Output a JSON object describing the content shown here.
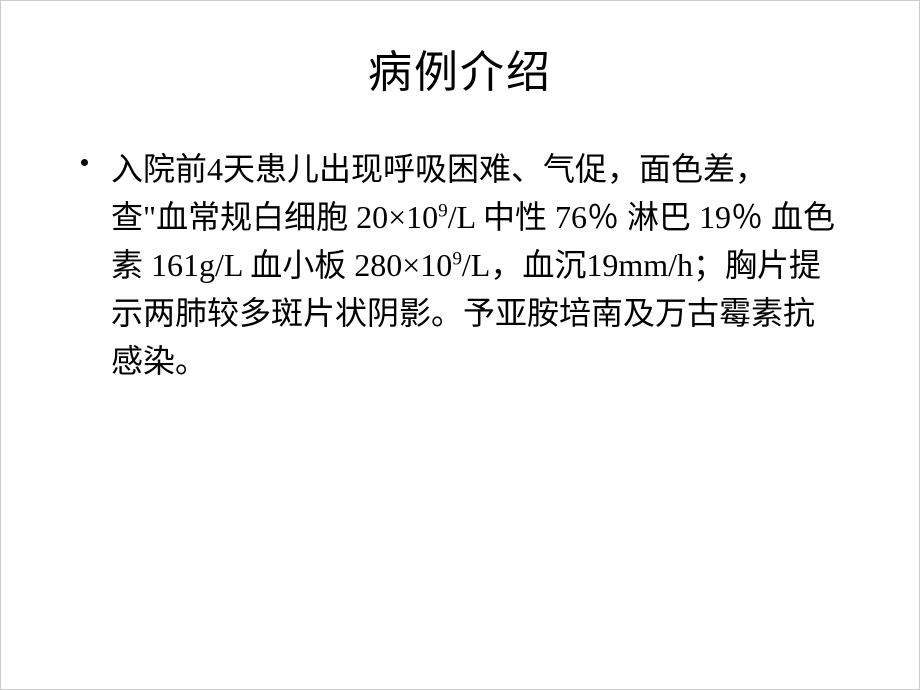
{
  "slide": {
    "title": "病例介绍",
    "bullet": {
      "seg1": "入院前4天患儿出现呼吸困难、气促，面色差，查\"血常规白细胞 20×10",
      "sup1": "9",
      "seg2": "/L 中性 76％ 淋巴 19％ 血色素 161g/L 血小板 280×10",
      "sup2": "9",
      "seg3": "/L，血沉19mm/h；胸片提示两肺较多斑片状阴影。予亚胺培南及万古霉素抗感染。"
    }
  },
  "colors": {
    "background": "#ffffff",
    "text": "#000000"
  },
  "typography": {
    "title_fontsize": 44,
    "body_fontsize": 32,
    "font_family": "SimSun"
  }
}
